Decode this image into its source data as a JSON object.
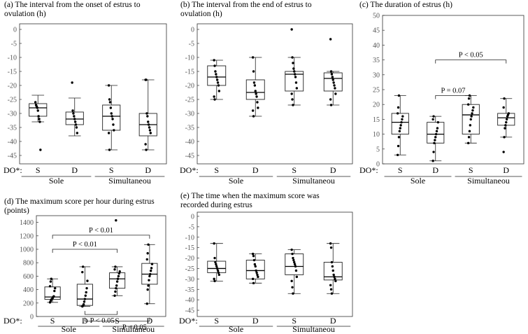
{
  "do_label": "DO*:",
  "chart_data": [
    {
      "id": "a",
      "type": "box",
      "title_lines": [
        "(a) The interval from the onset of estrus to",
        "ovulation (h)"
      ],
      "yticks": [
        0,
        -5,
        -10,
        -15,
        -20,
        -25,
        -30,
        -35,
        -40,
        -45
      ],
      "ylim": [
        -48,
        2
      ],
      "category_labels": [
        "S",
        "D",
        "S",
        "D"
      ],
      "groups": [
        "Sole",
        "Simultaneou"
      ],
      "boxes": [
        {
          "min": -33,
          "q1": -31,
          "median": -28,
          "q3": -26.5,
          "max": -23.5,
          "points": [
            -26,
            -27,
            -27.5,
            -28,
            -29,
            -31,
            -32,
            -33,
            -43
          ]
        },
        {
          "min": -38,
          "q1": -34,
          "median": -32,
          "q3": -29.5,
          "max": -24.5,
          "points": [
            -19,
            -29,
            -30,
            -31,
            -32,
            -33,
            -34,
            -35,
            -37
          ]
        },
        {
          "min": -43,
          "q1": -36,
          "median": -31,
          "q3": -27,
          "max": -20,
          "points": [
            -20,
            -25,
            -26,
            -28,
            -30,
            -31,
            -32,
            -34,
            -36,
            -37,
            -43
          ]
        },
        {
          "min": -43,
          "q1": -38,
          "median": -34,
          "q3": -30,
          "max": -18,
          "points": [
            -18,
            -18,
            -30,
            -31,
            -33,
            -34,
            -35,
            -36,
            -37,
            -41,
            -43
          ]
        }
      ],
      "annotations": []
    },
    {
      "id": "b",
      "type": "box",
      "title_lines": [
        "(b) The interval from the end of estrus to",
        "ovulation (h)"
      ],
      "yticks": [
        0,
        -5,
        -10,
        -15,
        -20,
        -25,
        -30,
        -35,
        -40,
        -45
      ],
      "ylim": [
        -48,
        2
      ],
      "category_labels": [
        "S",
        "D",
        "S",
        "D"
      ],
      "groups": [
        "Sole",
        "Simultaneou"
      ],
      "boxes": [
        {
          "min": -25,
          "q1": -20,
          "median": -17,
          "q3": -13,
          "max": -11,
          "points": [
            -11,
            -13,
            -15,
            -16,
            -17,
            -18,
            -19,
            -20,
            -22,
            -24,
            -25
          ]
        },
        {
          "min": -31,
          "q1": -25,
          "median": -22.5,
          "q3": -18,
          "max": -10,
          "points": [
            -10,
            -15,
            -19,
            -20,
            -22,
            -23,
            -24,
            -26,
            -28,
            -29,
            -31
          ]
        },
        {
          "min": -27,
          "q1": -22,
          "median": -16,
          "q3": -15,
          "max": -10,
          "points": [
            0,
            -10,
            -12,
            -14,
            -15,
            -16,
            -17,
            -19,
            -21,
            -23,
            -25,
            -27
          ]
        },
        {
          "min": -27,
          "q1": -22,
          "median": -17.5,
          "q3": -15.5,
          "max": -15,
          "points": [
            -3.5,
            -15,
            -16,
            -17,
            -18,
            -19,
            -20,
            -21,
            -23,
            -25,
            -27
          ]
        }
      ],
      "annotations": []
    },
    {
      "id": "c",
      "type": "box",
      "title_lines": [
        "(c) The duration of estrus (h)"
      ],
      "yticks": [
        50,
        45,
        40,
        35,
        30,
        25,
        20,
        15,
        10,
        5,
        0
      ],
      "ylim": [
        0,
        50
      ],
      "category_labels": [
        "S",
        "D",
        "S",
        "D"
      ],
      "groups": [
        "Sole",
        "Simultaneou"
      ],
      "boxes": [
        {
          "min": 3,
          "q1": 10,
          "median": 14,
          "q3": 17,
          "max": 23,
          "points": [
            3,
            6,
            9,
            11,
            12,
            13,
            14,
            15,
            16,
            17,
            19,
            23
          ]
        },
        {
          "min": 1,
          "q1": 7,
          "median": 10,
          "q3": 14,
          "max": 16,
          "points": [
            1,
            4,
            7,
            8,
            9,
            10,
            11,
            12,
            14,
            15,
            16
          ]
        },
        {
          "min": 7,
          "q1": 10,
          "median": 16.5,
          "q3": 20,
          "max": 23,
          "points": [
            7,
            9,
            11,
            13,
            15,
            16,
            17,
            18,
            19,
            20,
            22,
            23
          ]
        },
        {
          "min": 9,
          "q1": 13,
          "median": 15.5,
          "q3": 17,
          "max": 22,
          "points": [
            4,
            9,
            12,
            13,
            14,
            15,
            16,
            16.5,
            17,
            19,
            22
          ]
        }
      ],
      "annotations": [
        {
          "text": "P = 0.07",
          "from": 1,
          "to": 2,
          "y": 23
        },
        {
          "text": "P < 0.05",
          "from": 1,
          "to": 3,
          "y": 35
        }
      ]
    },
    {
      "id": "d",
      "type": "box",
      "title_lines": [
        "(d) The maximum score per hour during estrus",
        "(points)"
      ],
      "yticks": [
        1400,
        1200,
        1000,
        800,
        600,
        400,
        200,
        0
      ],
      "ylim": [
        0,
        1500
      ],
      "category_labels": [
        "S",
        "D",
        "S",
        "D"
      ],
      "groups": [
        "Sole",
        "Simultaneou"
      ],
      "boxes": [
        {
          "min": 210,
          "q1": 255,
          "median": 290,
          "q3": 440,
          "max": 560,
          "points": [
            210,
            230,
            250,
            260,
            270,
            290,
            300,
            380,
            420,
            450,
            520,
            560
          ]
        },
        {
          "min": 150,
          "q1": 165,
          "median": 260,
          "q3": 480,
          "max": 740,
          "points": [
            150,
            160,
            180,
            220,
            260,
            310,
            360,
            420,
            530,
            660,
            740
          ]
        },
        {
          "min": 310,
          "q1": 420,
          "median": 560,
          "q3": 650,
          "max": 740,
          "points": [
            310,
            370,
            420,
            460,
            520,
            560,
            600,
            640,
            670,
            700,
            740,
            1430
          ]
        },
        {
          "min": 190,
          "q1": 480,
          "median": 630,
          "q3": 790,
          "max": 1070,
          "points": [
            190,
            400,
            460,
            540,
            600,
            630,
            680,
            720,
            780,
            850,
            940,
            1070
          ]
        }
      ],
      "annotations": [
        {
          "text": "P < 0.01",
          "from": 0,
          "to": 3,
          "y": 1210
        },
        {
          "text": "P < 0.01",
          "from": 0,
          "to": 2,
          "y": 1000
        },
        {
          "text": "P < 0.05",
          "from": 1,
          "to": 2,
          "y": 30,
          "below": true
        },
        {
          "text": "P < 0.05",
          "from": 1,
          "to": 3,
          "y": -70,
          "below": true
        }
      ]
    },
    {
      "id": "e",
      "type": "box",
      "title_lines": [
        "(e) The time when the maximum score was",
        "recorded during estrus"
      ],
      "yticks": [
        0,
        -5,
        -10,
        -15,
        -20,
        -25,
        -30,
        -35,
        -40,
        -45
      ],
      "ylim": [
        -48,
        2
      ],
      "category_labels": [
        "S",
        "D",
        "S",
        "D"
      ],
      "groups": [
        "Sole",
        "Simultaneou"
      ],
      "boxes": [
        {
          "min": -31,
          "q1": -27,
          "median": -25,
          "q3": -21.5,
          "max": -13,
          "points": [
            -13,
            -20,
            -22,
            -23,
            -24,
            -25,
            -26,
            -27,
            -28,
            -30,
            -31
          ]
        },
        {
          "min": -32,
          "q1": -30,
          "median": -26,
          "q3": -21,
          "max": -18,
          "points": [
            -18,
            -19,
            -21,
            -23,
            -24,
            -26,
            -27,
            -28,
            -29,
            -30,
            -32
          ]
        },
        {
          "min": -37,
          "q1": -28,
          "median": -24,
          "q3": -18,
          "max": -16,
          "points": [
            -16,
            -18,
            -20,
            -21,
            -22,
            -23,
            -24,
            -26,
            -29,
            -31,
            -34,
            -37
          ]
        },
        {
          "min": -37,
          "q1": -30.5,
          "median": -29,
          "q3": -22,
          "max": -13,
          "points": [
            -13,
            -15,
            -22,
            -24,
            -26,
            -28,
            -29,
            -30,
            -31,
            -33,
            -35,
            -37
          ]
        }
      ],
      "annotations": []
    }
  ]
}
